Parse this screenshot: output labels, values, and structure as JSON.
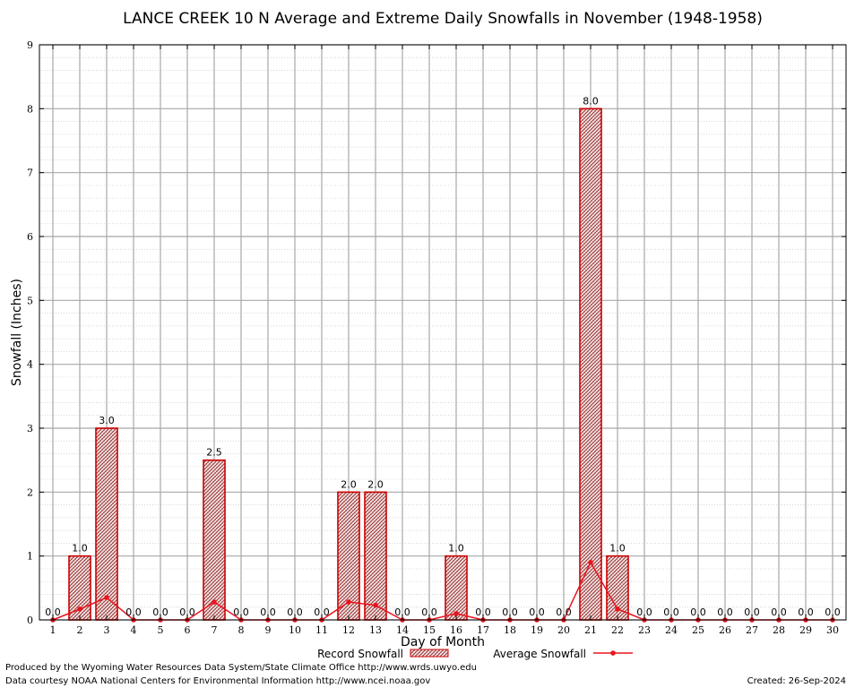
{
  "chart_data": {
    "type": "bar",
    "title": "LANCE CREEK 10 N Average and Extreme Daily Snowfalls in November (1948-1958)",
    "xlabel": "Day of Month",
    "ylabel": "Snowfall (Inches)",
    "ylim": [
      0,
      9
    ],
    "yticks": [
      "0",
      "1",
      "2",
      "3",
      "4",
      "5",
      "6",
      "7",
      "8",
      "9"
    ],
    "categories": [
      "1",
      "2",
      "3",
      "4",
      "5",
      "6",
      "7",
      "8",
      "9",
      "10",
      "11",
      "12",
      "13",
      "14",
      "15",
      "16",
      "17",
      "18",
      "19",
      "20",
      "21",
      "22",
      "23",
      "24",
      "25",
      "26",
      "27",
      "28",
      "29",
      "30"
    ],
    "grid": true,
    "legend_position": "bottom",
    "series": [
      {
        "name": "Record Snowfall",
        "kind": "bar",
        "color": "#cc0000",
        "values": [
          0.0,
          1.0,
          3.0,
          0.0,
          0.0,
          0.0,
          2.5,
          0.0,
          0.0,
          0.0,
          0.0,
          2.0,
          2.0,
          0.0,
          0.0,
          1.0,
          0.0,
          0.0,
          0.0,
          0.0,
          8.0,
          1.0,
          0.0,
          0.0,
          0.0,
          0.0,
          0.0,
          0.0,
          0.0,
          0.0
        ],
        "labels": [
          "0.0",
          "1.0",
          "3.0",
          "0.0",
          "0.0",
          "0.0",
          "2.5",
          "0.0",
          "0.0",
          "0.0",
          "0.0",
          "2.0",
          "2.0",
          "0.0",
          "0.0",
          "1.0",
          "0.0",
          "0.0",
          "0.0",
          "0.0",
          "8.0",
          "1.0",
          "0.0",
          "0.0",
          "0.0",
          "0.0",
          "0.0",
          "0.0",
          "0.0",
          "0.0"
        ]
      },
      {
        "name": "Average Snowfall",
        "kind": "line",
        "color": "#e8141e",
        "values": [
          0.0,
          0.17,
          0.35,
          0.0,
          0.0,
          0.0,
          0.28,
          0.0,
          0.0,
          0.0,
          0.0,
          0.28,
          0.23,
          0.0,
          0.0,
          0.1,
          0.0,
          0.0,
          0.0,
          0.0,
          0.9,
          0.17,
          0.0,
          0.0,
          0.0,
          0.0,
          0.0,
          0.0,
          0.0,
          0.0
        ]
      }
    ]
  },
  "footer": {
    "produced_by": "Produced by the Wyoming Water Resources Data System/State Climate Office http://www.wrds.uwyo.edu",
    "courtesy": "Data courtesy NOAA National Centers for Environmental Information http://www.ncei.noaa.gov",
    "created": "Created: 26-Sep-2024"
  }
}
